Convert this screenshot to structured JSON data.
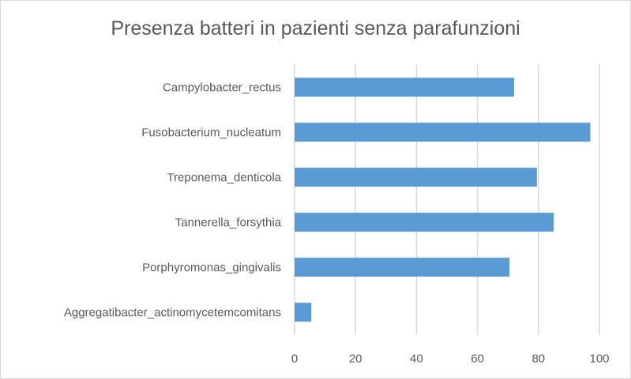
{
  "chart_data": {
    "type": "bar",
    "orientation": "horizontal",
    "title": "Presenza batteri in pazienti senza parafunzioni",
    "categories": [
      "Campylobacter_rectus",
      "Fusobacterium_nucleatum",
      "Treponema_denticola",
      "Tannerella_forsythia",
      "Porphyromonas_gingivalis",
      "Aggregatibacter_actinomycetemcomitans"
    ],
    "values": [
      72,
      97,
      79.5,
      85,
      70.5,
      5.5
    ],
    "xlim": [
      0,
      100
    ],
    "xticks": [
      "0",
      "20",
      "40",
      "60",
      "80",
      "100"
    ],
    "grid": true,
    "bar_color": "#5b9bd5",
    "grid_color": "#d9d9d9"
  }
}
